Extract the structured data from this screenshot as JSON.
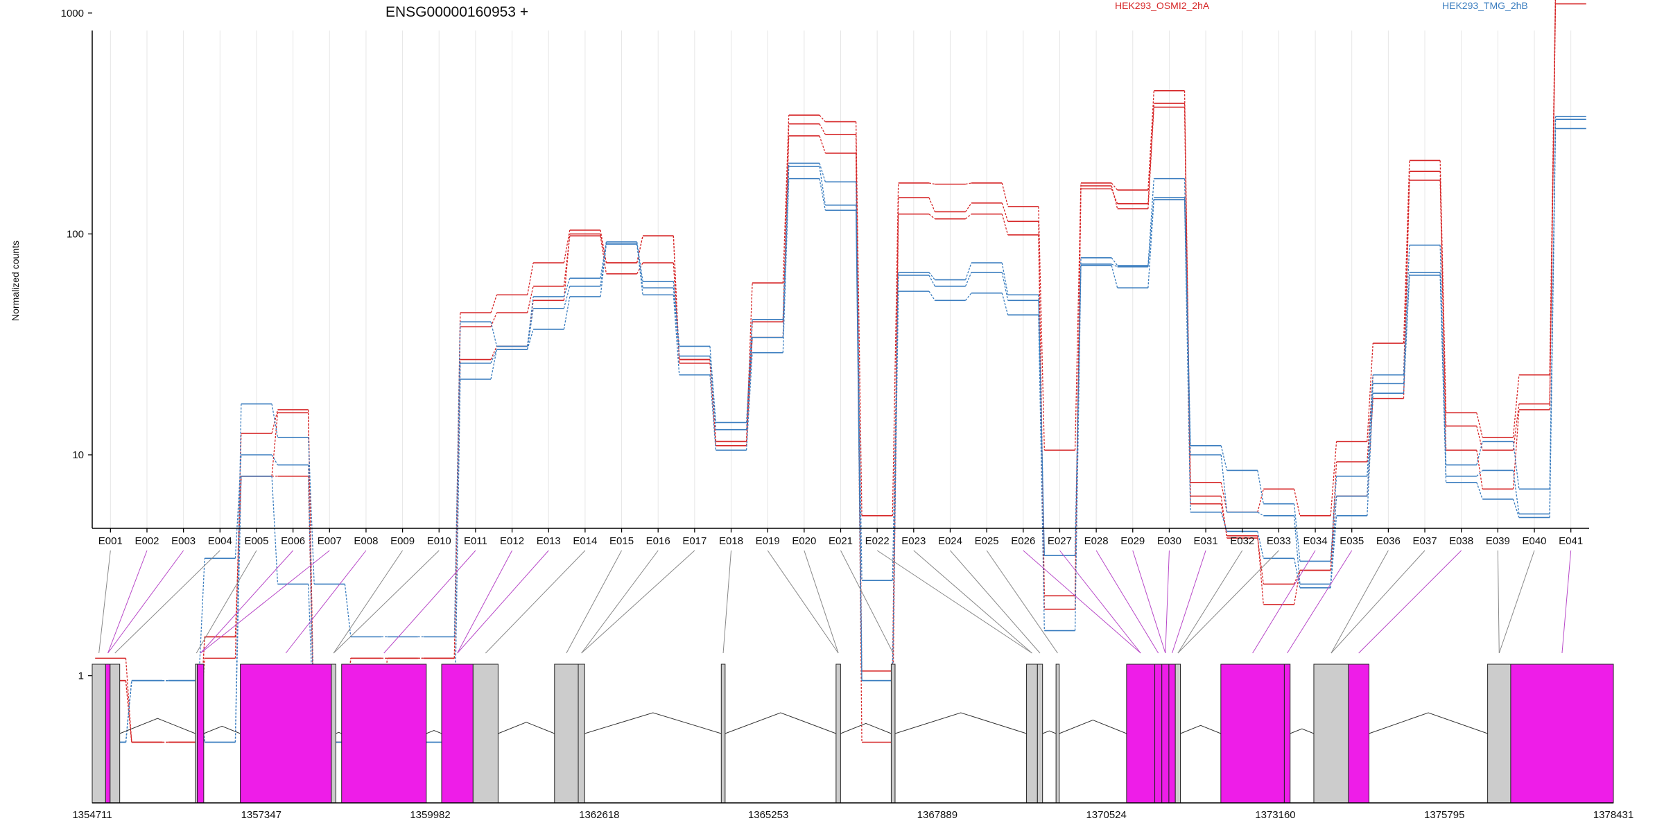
{
  "chart_data": {
    "type": "line",
    "title": "ENSG00000160953 +",
    "ylabel": "Normalized counts",
    "y_scale": "log",
    "yticks": [
      1,
      10,
      100,
      1000
    ],
    "ytick_labels": [
      "1",
      "10",
      "100",
      "1000"
    ],
    "legend": "top-right",
    "bins": [
      "E001",
      "E002",
      "E003",
      "E004",
      "E005",
      "E006",
      "E007",
      "E008",
      "E009",
      "E010",
      "E011",
      "E012",
      "E013",
      "E014",
      "E015",
      "E016",
      "E017",
      "E018",
      "E019",
      "E020",
      "E021",
      "E022",
      "E023",
      "E024",
      "E025",
      "E026",
      "E027",
      "E028",
      "E029",
      "E030",
      "E031",
      "E032",
      "E033",
      "E034",
      "E035",
      "E036",
      "E037",
      "E038",
      "E039",
      "E040",
      "E041"
    ],
    "series": [
      {
        "name": "HEK293_OSMI2_2hA",
        "color": "#d62728",
        "values": [
          1.2,
          0.5,
          0.5,
          1.2,
          12.5,
          16,
          0.5,
          1.2,
          1.2,
          1.2,
          44,
          53,
          74,
          104,
          74,
          98,
          26,
          11.5,
          60,
          345,
          322,
          5.3,
          170,
          168,
          170,
          133,
          10.5,
          170,
          158,
          445,
          7.5,
          5.5,
          7,
          5.3,
          11.5,
          32,
          215,
          15.5,
          12,
          23,
          1320
        ]
      },
      {
        "name": "HEK293_OSMI2_2hA",
        "color": "#d62728",
        "values": [
          0.95,
          0.5,
          0.5,
          1.5,
          8,
          8,
          0.5,
          1.2,
          1.2,
          1.2,
          38,
          44,
          58,
          98,
          66,
          74,
          27,
          11,
          40,
          315,
          282,
          1.05,
          146,
          126,
          138,
          114,
          2.3,
          160,
          137,
          390,
          6.5,
          4.2,
          2.6,
          3,
          9.3,
          23,
          192,
          13.5,
          10.5,
          17,
          1180
        ]
      },
      {
        "name": "HEK293_OSMI2_2hA",
        "color": "#d62728",
        "values": [
          0.95,
          0.5,
          0.5,
          1.5,
          8,
          15.5,
          0.5,
          0.5,
          1.2,
          1.2,
          27,
          31,
          50,
          100,
          74,
          98,
          27,
          11.5,
          34,
          278,
          232,
          0.5,
          123,
          117,
          123,
          99,
          2,
          165,
          130,
          375,
          6,
          4.3,
          2.1,
          3,
          6.5,
          18,
          175,
          10.5,
          7,
          16,
          1100
        ]
      },
      {
        "name": "HEK293_TMG_2hB",
        "color": "#3a7dbf",
        "values": [
          0.5,
          0.95,
          0.95,
          0.5,
          17,
          12,
          2.6,
          1.5,
          1.5,
          1.5,
          40,
          31,
          52,
          63,
          92,
          61,
          31,
          14,
          41,
          209,
          172,
          2.7,
          67,
          62,
          74,
          53,
          3.5,
          78,
          72,
          178,
          11,
          8.5,
          6,
          3.3,
          8,
          23,
          89,
          9,
          11.5,
          7,
          340
        ]
      },
      {
        "name": "HEK293_TMG_2hB",
        "color": "#3a7dbf",
        "values": [
          0.5,
          0.95,
          0.95,
          3.4,
          10,
          9,
          0.5,
          0.5,
          0.5,
          0.5,
          26,
          30,
          46,
          58,
          90,
          57,
          28,
          13,
          34,
          202,
          135,
          0.95,
          65,
          58,
          67,
          50,
          3.5,
          73,
          71,
          146,
          10,
          5.5,
          5.3,
          2.6,
          6.5,
          21,
          67,
          8,
          8.5,
          5.4,
          330
        ]
      },
      {
        "name": "HEK293_TMG_2hB",
        "color": "#3a7dbf",
        "values": [
          0.5,
          0.95,
          0.95,
          0.5,
          8,
          2.6,
          0.5,
          0.5,
          0.5,
          0.5,
          22,
          30,
          37,
          52,
          90,
          53,
          23,
          10.5,
          29,
          178,
          128,
          0.95,
          55,
          50,
          54,
          43,
          1.6,
          72,
          57,
          143,
          5.5,
          4.5,
          3.4,
          2.5,
          5.3,
          19,
          65,
          7.5,
          6.3,
          5.2,
          300
        ]
      }
    ],
    "legend_entries": [
      {
        "label": "HEK293_OSMI2_2hA",
        "color": "#d62728"
      },
      {
        "label": "HEK293_TMG_2hB",
        "color": "#3a7dbf"
      }
    ],
    "genomic_axis": {
      "range": [
        1354711,
        1378431
      ],
      "tick_labels": [
        "1354711",
        "1357347",
        "1359982",
        "1362618",
        "1365253",
        "1367889",
        "1370524",
        "1373160",
        "1375795",
        "1378431"
      ]
    },
    "gene_model": {
      "exon_color": "#ee1de8",
      "noncoding_color": "#cccccc",
      "features": [
        {
          "start": 1354711,
          "end": 1354920,
          "kind": "noncoding"
        },
        {
          "start": 1354920,
          "end": 1354990,
          "kind": "exon"
        },
        {
          "start": 1354990,
          "end": 1355140,
          "kind": "noncoding"
        },
        {
          "start": 1356320,
          "end": 1356350,
          "kind": "noncoding"
        },
        {
          "start": 1356350,
          "end": 1356450,
          "kind": "exon"
        },
        {
          "start": 1357020,
          "end": 1358440,
          "kind": "exon"
        },
        {
          "start": 1358440,
          "end": 1358510,
          "kind": "noncoding"
        },
        {
          "start": 1358600,
          "end": 1359920,
          "kind": "exon"
        },
        {
          "start": 1360160,
          "end": 1360650,
          "kind": "exon"
        },
        {
          "start": 1360650,
          "end": 1361040,
          "kind": "noncoding"
        },
        {
          "start": 1361920,
          "end": 1362290,
          "kind": "noncoding"
        },
        {
          "start": 1362290,
          "end": 1362390,
          "kind": "noncoding"
        },
        {
          "start": 1364520,
          "end": 1364580,
          "kind": "noncoding"
        },
        {
          "start": 1366310,
          "end": 1366380,
          "kind": "noncoding"
        },
        {
          "start": 1367170,
          "end": 1367230,
          "kind": "noncoding"
        },
        {
          "start": 1369280,
          "end": 1369450,
          "kind": "noncoding"
        },
        {
          "start": 1369450,
          "end": 1369530,
          "kind": "noncoding"
        },
        {
          "start": 1369740,
          "end": 1369790,
          "kind": "noncoding"
        },
        {
          "start": 1370840,
          "end": 1371280,
          "kind": "exon"
        },
        {
          "start": 1371280,
          "end": 1371390,
          "kind": "exon"
        },
        {
          "start": 1371390,
          "end": 1371500,
          "kind": "exon"
        },
        {
          "start": 1371500,
          "end": 1371600,
          "kind": "exon"
        },
        {
          "start": 1371600,
          "end": 1371680,
          "kind": "noncoding"
        },
        {
          "start": 1372310,
          "end": 1373300,
          "kind": "exon"
        },
        {
          "start": 1373300,
          "end": 1373390,
          "kind": "exon"
        },
        {
          "start": 1373760,
          "end": 1374300,
          "kind": "noncoding"
        },
        {
          "start": 1374300,
          "end": 1374620,
          "kind": "exon"
        },
        {
          "start": 1376470,
          "end": 1376830,
          "kind": "noncoding"
        },
        {
          "start": 1376830,
          "end": 1378431,
          "kind": "exon"
        }
      ]
    }
  }
}
